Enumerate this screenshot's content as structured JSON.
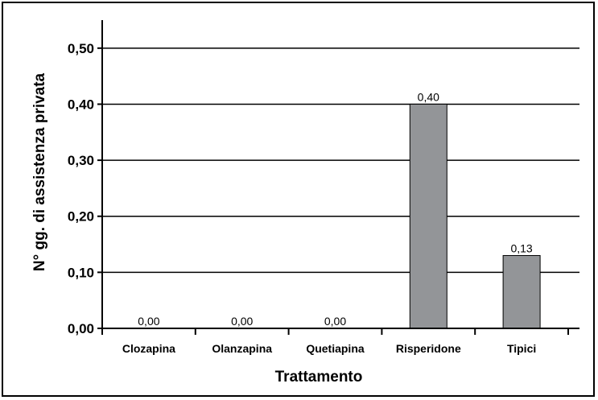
{
  "chart_data": {
    "type": "bar",
    "categories": [
      "Clozapina",
      "Olanzapina",
      "Quetiapina",
      "Risperidone",
      "Tipici"
    ],
    "values": [
      0.0,
      0.0,
      0.0,
      0.4,
      0.13
    ],
    "data_labels": [
      "0,00",
      "0,00",
      "0,00",
      "0,40",
      "0,13"
    ],
    "xlabel": "Trattamento",
    "ylabel": "N° gg. di assistenza privata",
    "ylim": [
      0,
      0.55
    ],
    "yticks": [
      0.0,
      0.1,
      0.2,
      0.3,
      0.4,
      0.5
    ],
    "ytick_labels": [
      "0,00",
      "0,10",
      "0,20",
      "0,30",
      "0,40",
      "0,50"
    ],
    "grid": true,
    "legend": "none",
    "colors": {
      "bar": "#939598",
      "bar_stroke": "#000000",
      "grid": "#000000"
    }
  }
}
